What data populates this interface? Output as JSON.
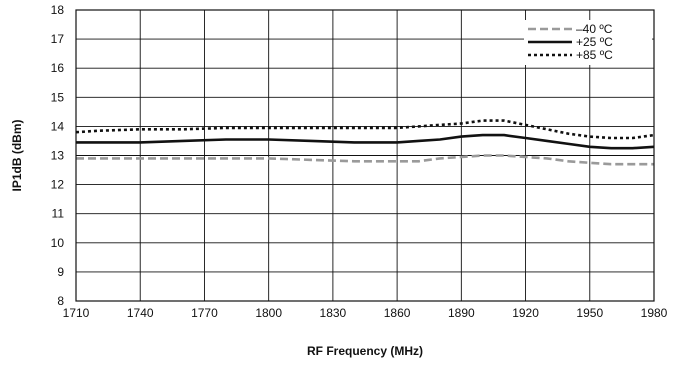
{
  "chart_data": {
    "type": "line",
    "title": "",
    "xlabel": "RF Frequency (MHz)",
    "ylabel": "IP1dB (dBm)",
    "xlim": [
      1710,
      1980
    ],
    "ylim": [
      8,
      18
    ],
    "x_ticks": [
      1710,
      1740,
      1770,
      1800,
      1830,
      1860,
      1890,
      1920,
      1950,
      1980
    ],
    "y_ticks": [
      8,
      9,
      10,
      11,
      12,
      13,
      14,
      15,
      16,
      17,
      18
    ],
    "grid": true,
    "legend_position": "top-right",
    "series": [
      {
        "name": "–40 ºC",
        "color": "#9a9a9a",
        "style": "dashed",
        "x": [
          1710,
          1720,
          1740,
          1760,
          1780,
          1800,
          1820,
          1840,
          1860,
          1870,
          1880,
          1890,
          1900,
          1910,
          1920,
          1930,
          1940,
          1950,
          1960,
          1970,
          1980
        ],
        "y": [
          12.9,
          12.9,
          12.9,
          12.9,
          12.9,
          12.9,
          12.85,
          12.8,
          12.8,
          12.8,
          12.9,
          12.95,
          13.0,
          13.0,
          12.95,
          12.9,
          12.8,
          12.75,
          12.7,
          12.7,
          12.7
        ]
      },
      {
        "name": "+25 ºC",
        "color": "#111111",
        "style": "solid",
        "x": [
          1710,
          1720,
          1740,
          1760,
          1780,
          1800,
          1820,
          1840,
          1860,
          1870,
          1880,
          1890,
          1900,
          1910,
          1920,
          1930,
          1940,
          1950,
          1960,
          1970,
          1980
        ],
        "y": [
          13.45,
          13.45,
          13.45,
          13.5,
          13.55,
          13.55,
          13.5,
          13.45,
          13.45,
          13.5,
          13.55,
          13.65,
          13.7,
          13.7,
          13.6,
          13.5,
          13.4,
          13.3,
          13.25,
          13.25,
          13.3
        ]
      },
      {
        "name": "+85 ºC",
        "color": "#111111",
        "style": "dotted",
        "x": [
          1710,
          1720,
          1740,
          1760,
          1780,
          1800,
          1820,
          1840,
          1860,
          1870,
          1880,
          1890,
          1900,
          1910,
          1920,
          1930,
          1940,
          1950,
          1960,
          1970,
          1980
        ],
        "y": [
          13.8,
          13.85,
          13.9,
          13.9,
          13.95,
          13.95,
          13.95,
          13.95,
          13.95,
          14.0,
          14.05,
          14.1,
          14.2,
          14.2,
          14.05,
          13.9,
          13.75,
          13.65,
          13.6,
          13.6,
          13.7
        ]
      }
    ]
  }
}
